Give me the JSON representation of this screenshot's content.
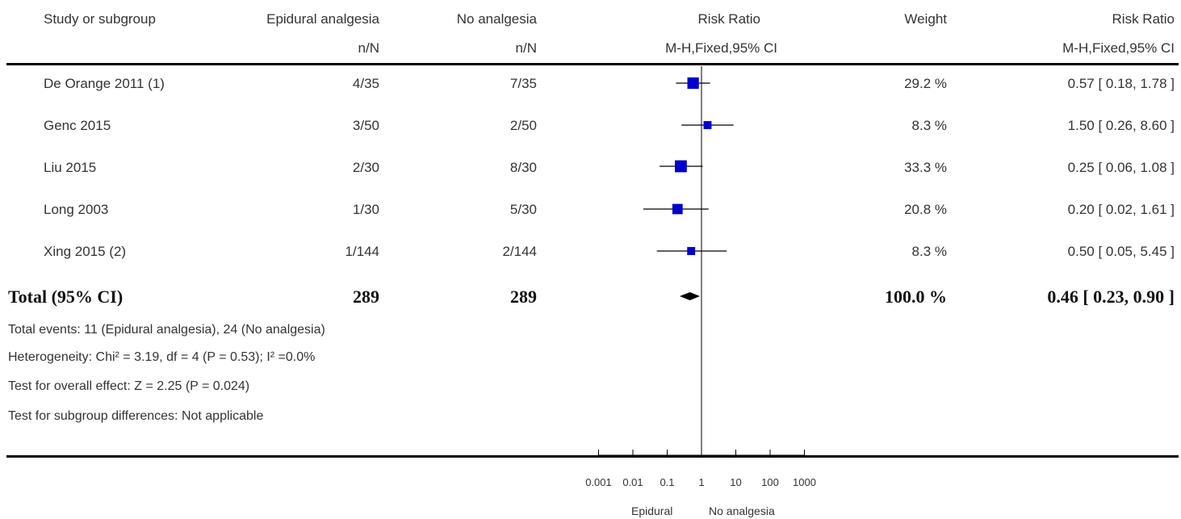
{
  "header": {
    "col_study": "Study or subgroup",
    "col_epi": "Epidural analgesia",
    "col_epi_sub": "n/N",
    "col_no": "No analgesia",
    "col_no_sub": "n/N",
    "col_rr_plot": "Risk Ratio",
    "col_rr_plot_sub": "M-H,Fixed,95% CI",
    "col_weight": "Weight",
    "col_rr": "Risk Ratio",
    "col_rr_sub": "M-H,Fixed,95% CI"
  },
  "rows": [
    {
      "study": "De Orange 2011 (1)",
      "epi": "4/35",
      "no": "7/35",
      "weight": "29.2 %",
      "rr_text": "0.57 [ 0.18, 1.78 ]"
    },
    {
      "study": "Genc 2015",
      "epi": "3/50",
      "no": "2/50",
      "weight": "8.3 %",
      "rr_text": "1.50 [ 0.26, 8.60 ]"
    },
    {
      "study": "Liu 2015",
      "epi": "2/30",
      "no": "8/30",
      "weight": "33.3 %",
      "rr_text": "0.25 [ 0.06, 1.08 ]"
    },
    {
      "study": "Long 2003",
      "epi": "1/30",
      "no": "5/30",
      "weight": "20.8 %",
      "rr_text": "0.20 [ 0.02, 1.61 ]"
    },
    {
      "study": "Xing 2015 (2)",
      "epi": "1/144",
      "no": "2/144",
      "weight": "8.3 %",
      "rr_text": "0.50 [ 0.05, 5.45 ]"
    }
  ],
  "total": {
    "label": "Total (95% CI)",
    "epi": "289",
    "no": "289",
    "weight": "100.0 %",
    "rr_text": "0.46 [ 0.23, 0.90 ]"
  },
  "footer": {
    "events": "Total events: 11 (Epidural analgesia), 24 (No analgesia)",
    "heterogeneity": "Heterogeneity: Chi² = 3.19, df = 4 (P = 0.53); I² =0.0%",
    "overall": "Test for overall effect: Z = 2.25 (P = 0.024)",
    "subgroup": "Test for subgroup differences: Not applicable"
  },
  "axis_labels": {
    "left": "Epidural",
    "right": "No analgesia"
  },
  "colors": {
    "marker": "#0000cc",
    "line": "#000000",
    "text": "#333333"
  },
  "chart_data": {
    "type": "scatter",
    "scale": "log10",
    "xticks": [
      0.001,
      0.01,
      0.1,
      1,
      10,
      100,
      1000
    ],
    "xtick_labels": [
      "0.001",
      "0.01",
      "0.1",
      "1",
      "10",
      "100",
      "1000"
    ],
    "xlim": [
      0.001,
      1000
    ],
    "reference_line": 1,
    "studies": [
      {
        "name": "De Orange 2011 (1)",
        "rr": 0.57,
        "lo": 0.18,
        "hi": 1.78,
        "weight": 29.2
      },
      {
        "name": "Genc 2015",
        "rr": 1.5,
        "lo": 0.26,
        "hi": 8.6,
        "weight": 8.3
      },
      {
        "name": "Liu 2015",
        "rr": 0.25,
        "lo": 0.06,
        "hi": 1.08,
        "weight": 33.3
      },
      {
        "name": "Long 2003",
        "rr": 0.2,
        "lo": 0.02,
        "hi": 1.61,
        "weight": 20.8
      },
      {
        "name": "Xing 2015 (2)",
        "rr": 0.5,
        "lo": 0.05,
        "hi": 5.45,
        "weight": 8.3
      }
    ],
    "pooled": {
      "rr": 0.46,
      "lo": 0.23,
      "hi": 0.9,
      "weight": 100.0
    }
  }
}
